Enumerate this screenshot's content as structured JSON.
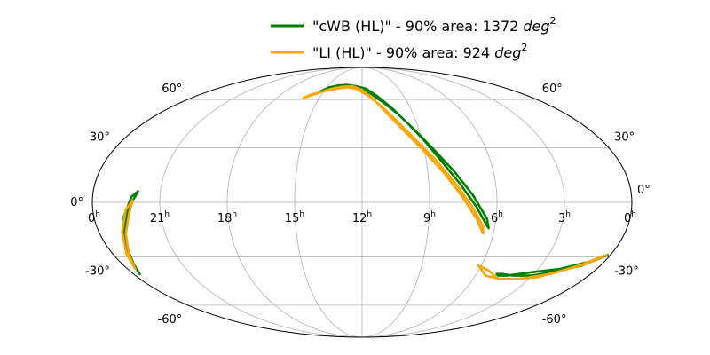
{
  "chart_data": {
    "type": "line",
    "projection": "mollweide",
    "grid": true,
    "legend_position": "top-center",
    "ra_ticks": [
      {
        "ra": 360,
        "hours": "0",
        "sup": "h"
      },
      {
        "ra": 315,
        "hours": "21",
        "sup": "h"
      },
      {
        "ra": 270,
        "hours": "18",
        "sup": "h"
      },
      {
        "ra": 225,
        "hours": "15",
        "sup": "h"
      },
      {
        "ra": 180,
        "hours": "12",
        "sup": "h"
      },
      {
        "ra": 135,
        "hours": "9",
        "sup": "h"
      },
      {
        "ra": 90,
        "hours": "6",
        "sup": "h"
      },
      {
        "ra": 45,
        "hours": "3",
        "sup": "h"
      },
      {
        "ra": 0,
        "hours": "0",
        "sup": "h"
      }
    ],
    "dec_ticks": [
      {
        "dec": 60,
        "label": "60°"
      },
      {
        "dec": 30,
        "label": "30°"
      },
      {
        "dec": 0,
        "label": "0°"
      },
      {
        "dec": -30,
        "label": "-30°"
      },
      {
        "dec": -60,
        "label": "-60°"
      }
    ],
    "series": [
      {
        "name": "\"cWB (HL)\" - 90% area: 1372 deg2",
        "legend_prefix": "\"cWB (HL)\" - 90% area: 1372 ",
        "legend_unit": "deg",
        "legend_sup": "2",
        "color": "#008000",
        "contours": [
          [
            [
              229,
              66
            ],
            [
              222,
              69
            ],
            [
              212,
              70.5
            ],
            [
              200,
              71
            ],
            [
              188,
              70
            ],
            [
              175,
              68
            ],
            [
              163,
              62
            ],
            [
              152,
              54
            ],
            [
              143,
              45
            ],
            [
              134,
              35
            ],
            [
              124,
              22
            ],
            [
              114,
              10
            ],
            [
              104,
              -2
            ],
            [
              96,
              -12
            ],
            [
              94,
              -14
            ],
            [
              96,
              -9
            ],
            [
              106,
              4
            ],
            [
              117,
              17
            ],
            [
              128,
              29
            ],
            [
              138,
              40
            ],
            [
              148,
              50
            ],
            [
              159,
              58
            ],
            [
              172,
              65
            ],
            [
              185,
              68.5
            ],
            [
              198,
              70
            ],
            [
              212,
              69.5
            ],
            [
              224,
              67.5
            ],
            [
              229,
              66
            ]
          ],
          [
            [
              330,
              6
            ],
            [
              334,
              3
            ],
            [
              340,
              -8
            ],
            [
              346,
              -22
            ],
            [
              352,
              -35
            ],
            [
              355,
              -40
            ],
            [
              350,
              -30
            ],
            [
              343,
              -16
            ],
            [
              336,
              -3
            ],
            [
              331,
              4
            ],
            [
              330,
              6
            ]
          ],
          [
            [
              74,
              -40
            ],
            [
              70,
              -40
            ],
            [
              60,
              -41
            ],
            [
              45,
              -41
            ],
            [
              28,
              -38
            ],
            [
              14,
              -35
            ],
            [
              2,
              -29
            ],
            [
              12,
              -33
            ],
            [
              28,
              -37
            ],
            [
              48,
              -39
            ],
            [
              65,
              -41
            ],
            [
              72,
              -41
            ],
            [
              74,
              -40
            ]
          ]
        ]
      },
      {
        "name": "\"LI (HL)\" - 90% area: 924 deg2",
        "legend_prefix": "\"LI (HL)\" - 90% area: 924 ",
        "legend_unit": "deg",
        "legend_sup": "2",
        "color": "#ffa500",
        "contours": [
          [
            [
              242,
              61
            ],
            [
              232,
              64
            ],
            [
              220,
              67.5
            ],
            [
              206,
              69.5
            ],
            [
              193,
              70
            ],
            [
              180,
              67
            ],
            [
              168,
              60
            ],
            [
              157,
              50
            ],
            [
              147,
              40
            ],
            [
              136,
              29
            ],
            [
              124,
              16
            ],
            [
              113,
              3
            ],
            [
              103,
              -9
            ],
            [
              97,
              -17
            ],
            [
              98,
              -13
            ],
            [
              106,
              -3
            ],
            [
              116,
              9
            ],
            [
              128,
              23
            ],
            [
              139,
              34
            ],
            [
              150,
              45
            ],
            [
              161,
              55
            ],
            [
              174,
              63
            ],
            [
              188,
              68
            ],
            [
              200,
              69
            ],
            [
              212,
              68
            ],
            [
              226,
              66
            ],
            [
              238,
              63
            ],
            [
              242,
              61
            ]
          ],
          [
            [
              333,
              1
            ],
            [
              338,
              -4
            ],
            [
              344,
              -16
            ],
            [
              350,
              -28
            ],
            [
              354,
              -37
            ],
            [
              349,
              -29
            ],
            [
              342,
              -17
            ],
            [
              336,
              -6
            ],
            [
              333,
              1
            ]
          ],
          [
            [
              92,
              -35
            ],
            [
              82,
              -38
            ],
            [
              70,
              -43
            ],
            [
              55,
              -43
            ],
            [
              40,
              -42
            ],
            [
              25,
              -38
            ],
            [
              12,
              -34
            ],
            [
              3,
              -29
            ],
            [
              16,
              -35
            ],
            [
              32,
              -40
            ],
            [
              52,
              -43
            ],
            [
              68,
              -43
            ],
            [
              82,
              -41
            ],
            [
              92,
              -35
            ]
          ]
        ]
      }
    ]
  }
}
